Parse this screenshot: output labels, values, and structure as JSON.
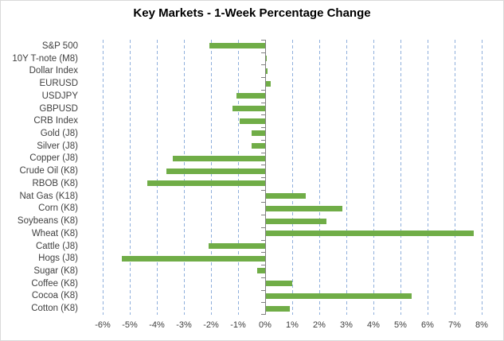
{
  "chart": {
    "title": "Key Markets - 1-Week Percentage Change"
  },
  "chart_data": {
    "type": "bar",
    "orientation": "horizontal",
    "title": "Key Markets - 1-Week Percentage Change",
    "categories": [
      "S&P 500",
      "10Y T-note (M8)",
      "Dollar Index",
      "EURUSD",
      "USDJPY",
      "GBPUSD",
      "CRB Index",
      "Gold (J8)",
      "Silver (J8)",
      "Copper (J8)",
      "Crude Oil (K8)",
      "RBOB (K8)",
      "Nat Gas (K18)",
      "Corn (K8)",
      "Soybeans (K8)",
      "Wheat (K8)",
      "Cattle (J8)",
      "Hogs (J8)",
      "Sugar (K8)",
      "Coffee (K8)",
      "Cocoa (K8)",
      "Cotton (K8)"
    ],
    "values": [
      -2.05,
      0.05,
      0.1,
      0.2,
      -1.05,
      -1.2,
      -0.95,
      -0.5,
      -0.5,
      -3.4,
      -3.65,
      -4.35,
      1.5,
      2.85,
      2.25,
      7.7,
      -2.1,
      -5.3,
      -0.3,
      1.0,
      5.4,
      0.9
    ],
    "value_unit": "%",
    "xlim": [
      -6,
      8
    ],
    "x_tick_labels": [
      "-6%",
      "-5%",
      "-4%",
      "-3%",
      "-2%",
      "-1%",
      "0%",
      "1%",
      "2%",
      "3%",
      "4%",
      "5%",
      "6%",
      "7%",
      "8%"
    ],
    "grid": true,
    "gridline_style": "dashed",
    "legend": false,
    "colors": {
      "bar": "#70AD47",
      "gridline": "#8FAFDC",
      "axis": "#808080",
      "text": "#404040",
      "title": "#000000",
      "border": "#D9D9D9",
      "background": "#FFFFFF"
    }
  }
}
